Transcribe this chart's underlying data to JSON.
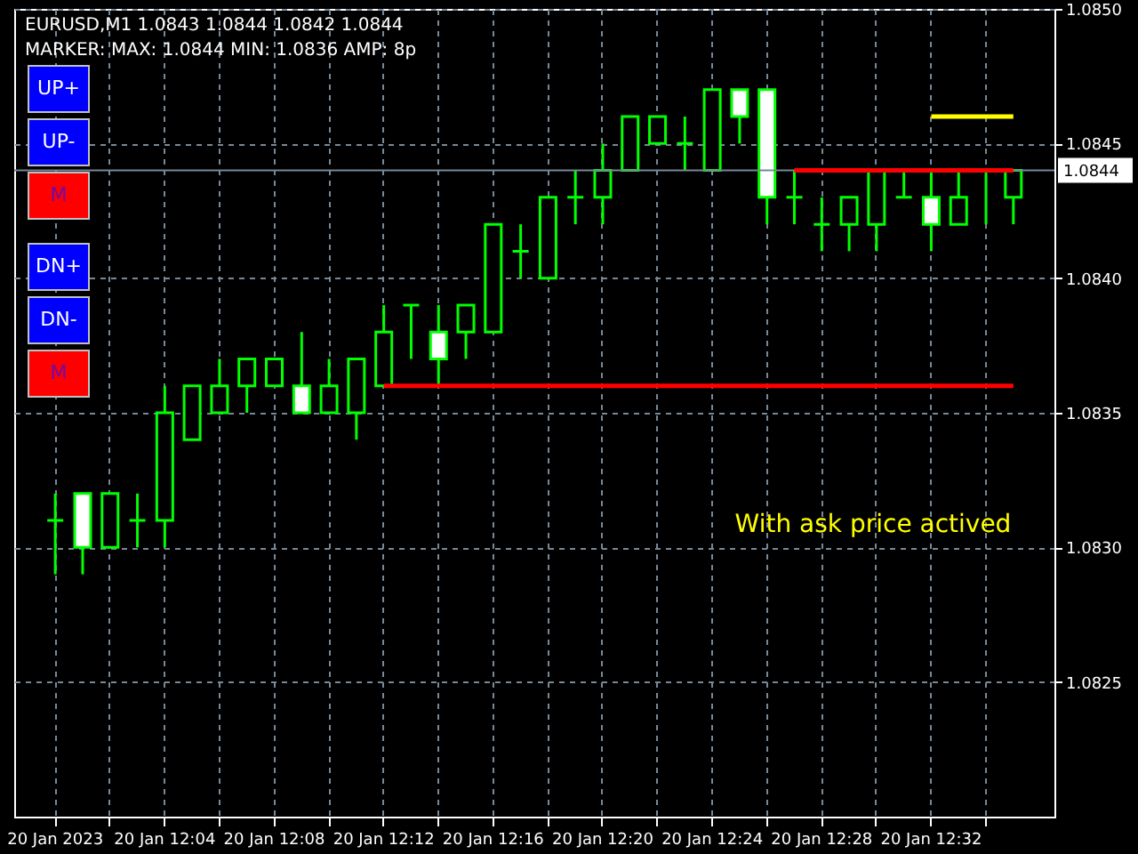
{
  "chart_data": {
    "type": "candlestick",
    "title": "EURUSD,M1  1.0843 1.0844 1.0842 1.0844",
    "subtitle": "MARKER: MAX: 1.0844 MIN: 1.0836 AMP: 8p",
    "annotations": [
      "UP+",
      "UP-",
      "M",
      "DN+",
      "DN-",
      "M",
      "With ask price actived"
    ],
    "categories": [
      "20 Jan 2023",
      null,
      null,
      null,
      "20 Jan 12:04",
      null,
      null,
      null,
      "20 Jan 12:08",
      null,
      null,
      null,
      "20 Jan 12:12",
      null,
      null,
      null,
      "20 Jan 12:16",
      null,
      null,
      null,
      "20 Jan 12:20",
      null,
      null,
      null,
      "20 Jan 12:24",
      null,
      null,
      null,
      "20 Jan 12:28",
      null,
      null,
      null,
      "20 Jan 12:32",
      null,
      null,
      null
    ],
    "ohlc": [
      [
        1.0831,
        1.0832,
        1.0829,
        1.0831
      ],
      [
        1.0832,
        1.0832,
        1.0829,
        1.083
      ],
      [
        1.083,
        1.0832,
        1.083,
        1.0832
      ],
      [
        1.0831,
        1.0832,
        1.083,
        1.0831
      ],
      [
        1.0831,
        1.0836,
        1.083,
        1.0835
      ],
      [
        1.0834,
        1.0836,
        1.0834,
        1.0836
      ],
      [
        1.0835,
        1.0837,
        1.0835,
        1.0836
      ],
      [
        1.0836,
        1.0837,
        1.0835,
        1.0837
      ],
      [
        1.0836,
        1.0837,
        1.0836,
        1.0837
      ],
      [
        1.0836,
        1.0838,
        1.0835,
        1.0835
      ],
      [
        1.0835,
        1.0837,
        1.0835,
        1.0836
      ],
      [
        1.0835,
        1.0837,
        1.0834,
        1.0837
      ],
      [
        1.0836,
        1.0839,
        1.0836,
        1.0838
      ],
      [
        1.0839,
        1.0839,
        1.0837,
        1.0839
      ],
      [
        1.0838,
        1.0839,
        1.0836,
        1.0837
      ],
      [
        1.0838,
        1.0839,
        1.0837,
        1.0839
      ],
      [
        1.0838,
        1.0842,
        1.0838,
        1.0842
      ],
      [
        1.0841,
        1.0842,
        1.084,
        1.0841
      ],
      [
        1.084,
        1.0843,
        1.084,
        1.0843
      ],
      [
        1.0843,
        1.0844,
        1.0842,
        1.0843
      ],
      [
        1.0843,
        1.0845,
        1.0842,
        1.0844
      ],
      [
        1.0844,
        1.0846,
        1.0844,
        1.0846
      ],
      [
        1.0845,
        1.0846,
        1.0845,
        1.0846
      ],
      [
        1.0845,
        1.0846,
        1.0844,
        1.0845
      ],
      [
        1.0844,
        1.0847,
        1.0844,
        1.0847
      ],
      [
        1.0847,
        1.0847,
        1.0845,
        1.0846
      ],
      [
        1.0847,
        1.0847,
        1.0842,
        1.0843
      ],
      [
        1.0843,
        1.0844,
        1.0842,
        1.0843
      ],
      [
        1.0842,
        1.0843,
        1.0841,
        1.0842
      ],
      [
        1.0842,
        1.0843,
        1.0841,
        1.0843
      ],
      [
        1.0842,
        1.0844,
        1.0841,
        1.0844
      ],
      [
        1.0843,
        1.0844,
        1.0843,
        1.0843
      ],
      [
        1.0843,
        1.0844,
        1.0841,
        1.0842
      ],
      [
        1.0842,
        1.0844,
        1.0842,
        1.0843
      ],
      [
        1.0844,
        1.0844,
        1.0842,
        1.0844
      ],
      [
        1.0843,
        1.0844,
        1.0842,
        1.0844
      ]
    ],
    "color": "#00ff00",
    "series": [
      {
        "type": "line",
        "color": "#ff0000",
        "values": [
          null,
          null,
          null,
          null,
          null,
          null,
          null,
          null,
          null,
          null,
          null,
          null,
          1.0836,
          1.0836,
          1.0836,
          1.0836,
          1.0836,
          1.0836,
          1.0836,
          1.0836,
          1.0836,
          1.0836,
          1.0836,
          1.0836,
          1.0836,
          1.0836,
          1.0836,
          1.0836,
          1.0836,
          1.0836,
          1.0836,
          1.0836,
          1.0836,
          1.0836,
          1.0836,
          1.0836
        ]
      },
      {
        "type": "line",
        "color": "#ff0000",
        "values": [
          null,
          null,
          null,
          null,
          null,
          null,
          null,
          null,
          null,
          null,
          null,
          null,
          null,
          null,
          null,
          null,
          null,
          null,
          null,
          null,
          null,
          null,
          null,
          null,
          null,
          null,
          null,
          1.0844,
          1.0844,
          1.0844,
          1.0844,
          1.0844,
          1.0844,
          1.0844,
          1.0844,
          1.0844
        ]
      },
      {
        "type": "line",
        "color": "#ffff00",
        "values": [
          null,
          null,
          null,
          null,
          null,
          null,
          null,
          null,
          null,
          null,
          null,
          null,
          null,
          null,
          null,
          null,
          null,
          null,
          null,
          null,
          null,
          null,
          null,
          null,
          null,
          null,
          null,
          null,
          null,
          null,
          null,
          null,
          1.0846,
          1.0846,
          1.0846,
          1.0846
        ]
      }
    ],
    "ref_lines": [
      {
        "axis": "y",
        "value": 1.0844,
        "label": "1.0844",
        "color": "#778899"
      }
    ],
    "ylim": [
      1.082,
      1.085
    ],
    "yticks": [
      1.0825,
      {
        "value": 1.083,
        "label": "1.0830"
      },
      1.0835,
      {
        "value": 1.084,
        "label": "1.0840"
      },
      1.0845,
      {
        "value": 1.085,
        "label": "1.0850"
      }
    ],
    "grid": true
  }
}
